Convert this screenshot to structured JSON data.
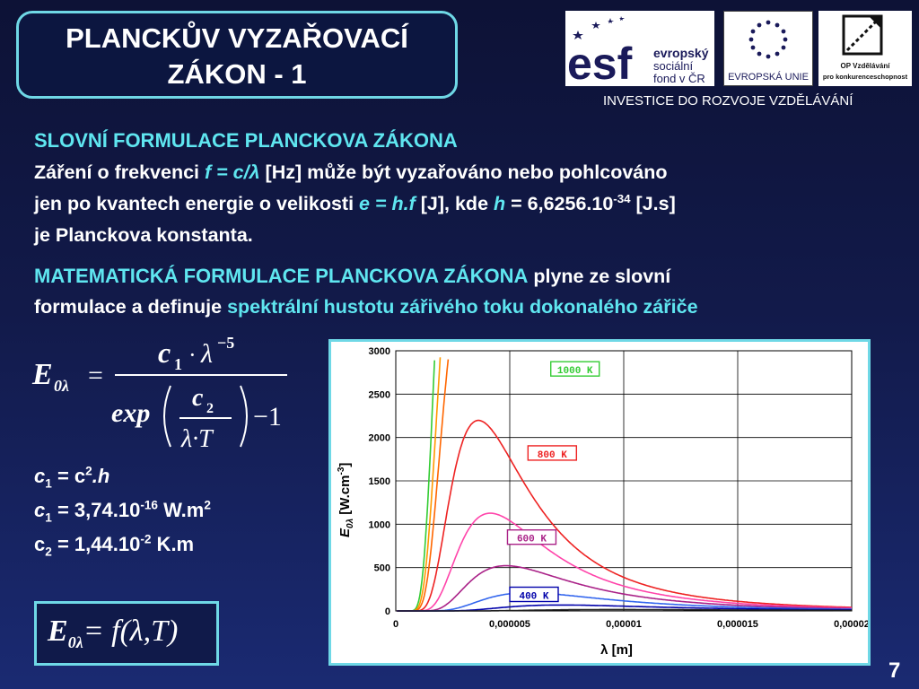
{
  "title": {
    "line1": "PLANCKŮV VYZAŘOVACÍ",
    "line2": "ZÁKON - 1"
  },
  "logos": {
    "esf_text": "esf",
    "esf_sub1": "evropský",
    "esf_sub2": "sociální",
    "esf_sub3": "fond v ČR",
    "eu_label": "EVROPSKÁ UNIE",
    "op_label1": "OP Vzdělávání",
    "op_label2": "pro konkurenceschopnost",
    "invest": "INVESTICE DO ROZVOJE VZDĚLÁVÁNÍ"
  },
  "section1": {
    "heading": "SLOVNÍ FORMULACE PLANCKOVA ZÁKONA",
    "l1a": "Záření o frekvenci ",
    "l1f": "f = c/λ",
    "l1b": " [Hz] může být vyzařováno nebo pohlcováno",
    "l2a": "jen po kvantech energie o velikosti ",
    "l2e": "e = h.f",
    "l2b": "  [J], kde ",
    "l2h": "h",
    "l2c": " = 6,6256.10",
    "l2exp": "-34",
    "l2d": " [J.s]",
    "l3": "je Planckova konstanta."
  },
  "section2": {
    "heading": "MATEMATICKÁ FORMULACE PLANCKOVA ZÁKONA",
    "l1b": " plyne ze slovní",
    "l2a": "formulace a definuje ",
    "l2b": "spektrální hustotu zářivého toku dokonalého zářiče"
  },
  "formula": {
    "lhs": "E",
    "lhs_sub": "0λ",
    "eq": "=",
    "num": "c",
    "num_sub": "1",
    "num_dot": "·",
    "num_lambda": "λ",
    "num_exp": "−5",
    "den_exp": "exp",
    "den_c": "c",
    "den_c_sub": "2",
    "den_lt": "λ·T",
    "den_minus": "−1"
  },
  "constants": {
    "c1a_pre": "c",
    "c1a_sub": "1",
    "c1a_rest": " = c",
    "c1a_sup": "2",
    "c1a_end": ".h",
    "c1b_pre": "c",
    "c1b_sub": "1",
    "c1b_rest": " = 3,74.10",
    "c1b_sup": "-16",
    "c1b_unit": " W.m",
    "c1b_sup2": "2",
    "c2_pre": "c",
    "c2_sub": "2",
    "c2_rest": " = 1,44.10",
    "c2_sup": "-2",
    "c2_unit": " K.m"
  },
  "box_formula": {
    "lhs": "E",
    "lhs_sub": "0λ",
    "rhs": "= f(λ,T)"
  },
  "page_number": "7",
  "chart_data": {
    "type": "line",
    "xlabel": "λ [m]",
    "ylabel": "E0λ [W.cm-3]",
    "ylabel_main": "E",
    "ylabel_sub": "0λ",
    "ylabel_unit": " [W.cm",
    "ylabel_sup": "-3",
    "ylabel_end": "]",
    "xlim": [
      0,
      2e-05
    ],
    "ylim": [
      0,
      3000
    ],
    "yticks": [
      0,
      500,
      1000,
      1500,
      2000,
      2500,
      3000
    ],
    "xtick_labels": [
      "0",
      "0,000005",
      "0,00001",
      "0,000015",
      "0,00002"
    ],
    "xtick_values": [
      0,
      5e-06,
      1e-05,
      1.5e-05,
      2e-05
    ],
    "grid": true,
    "series": [
      {
        "name": "1000 K",
        "T": 1000,
        "color": "#33cc33",
        "labeled": true
      },
      {
        "name": "",
        "T": 950,
        "color": "#ff9900",
        "labeled": false
      },
      {
        "name": "",
        "T": 900,
        "color": "#ff6600",
        "labeled": false
      },
      {
        "name": "800 K",
        "T": 800,
        "color": "#ee2222",
        "labeled": true
      },
      {
        "name": "",
        "T": 700,
        "color": "#ff44aa",
        "labeled": false
      },
      {
        "name": "600 K",
        "T": 600,
        "color": "#aa2288",
        "labeled": true
      },
      {
        "name": "",
        "T": 500,
        "color": "#3366ee",
        "labeled": false
      },
      {
        "name": "400 K",
        "T": 400,
        "color": "#0000aa",
        "labeled": true
      },
      {
        "name": "",
        "T": 300,
        "color": "#222222",
        "labeled": false
      }
    ]
  }
}
